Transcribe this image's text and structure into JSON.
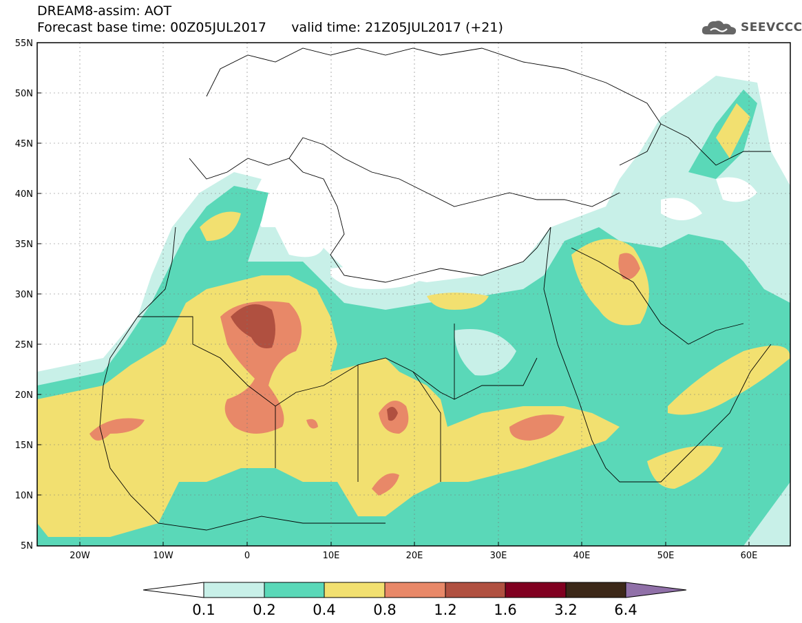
{
  "title": {
    "line1": "DREAM8-assim: AOT",
    "line2": "Forecast base time: 00Z05JUL2017      valid time: 21Z05JUL2017 (+21)"
  },
  "logo": {
    "text": "SEEVCCC",
    "icon": "cloud-logo-icon"
  },
  "map": {
    "lat_ticks": [
      "55N",
      "50N",
      "45N",
      "40N",
      "35N",
      "30N",
      "25N",
      "20N",
      "15N",
      "10N",
      "5N"
    ],
    "lon_ticks": [
      "20W",
      "10W",
      "0",
      "10E",
      "20E",
      "30E",
      "40E",
      "50E",
      "60E"
    ],
    "lon_range": [
      -25,
      65
    ],
    "lat_range": [
      5,
      55
    ]
  },
  "colorbar": {
    "labels": [
      "0.1",
      "0.2",
      "0.4",
      "0.8",
      "1.2",
      "1.6",
      "3.2",
      "6.4"
    ],
    "colors": [
      "#ffffff",
      "#c8f0e8",
      "#5ad8b8",
      "#f2e070",
      "#e88868",
      "#b05040",
      "#800020",
      "#3c2818",
      "#9070a8"
    ]
  }
}
